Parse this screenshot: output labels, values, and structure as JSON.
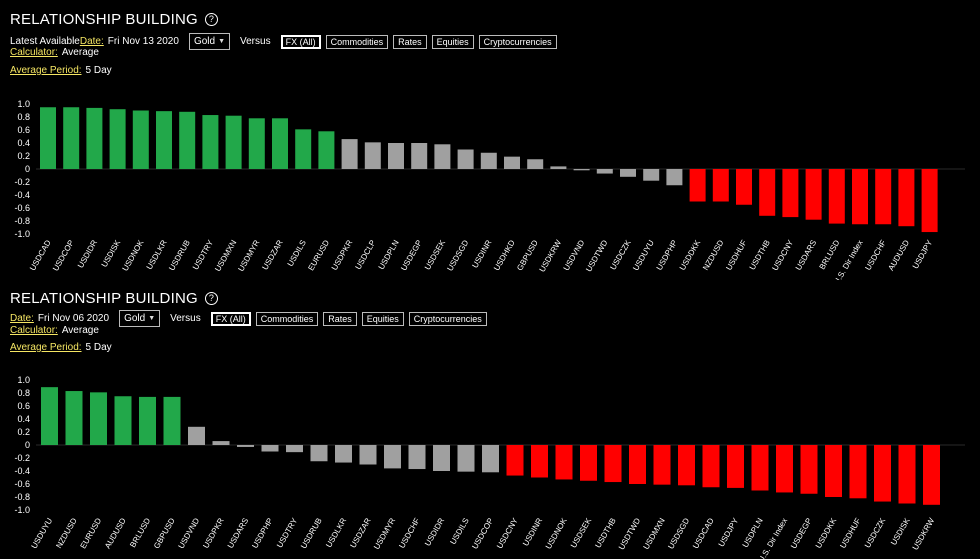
{
  "panels": [
    {
      "title": "RELATIONSHIP BUILDING",
      "help_icon": "question-circle-icon",
      "date_prefix": "Latest Available ",
      "date_label": "Date:",
      "date_value": "Fri Nov 13 2020",
      "asset_select": "Gold",
      "versus_label": "Versus",
      "tabs": [
        {
          "label": "FX (All)",
          "active": true
        },
        {
          "label": "Commodities",
          "active": false
        },
        {
          "label": "Rates",
          "active": false
        },
        {
          "label": "Equities",
          "active": false
        },
        {
          "label": "Cryptocurrencies",
          "active": false
        }
      ],
      "calculator_label": "Calculator:",
      "calculator_value": "Average",
      "period_label": "Average Period:",
      "period_value": "5 Day"
    },
    {
      "title": "RELATIONSHIP BUILDING",
      "help_icon": "question-circle-icon",
      "date_prefix": "",
      "date_label": "Date:",
      "date_value": "Fri Nov 06 2020",
      "asset_select": "Gold",
      "versus_label": "Versus",
      "tabs": [
        {
          "label": "FX (All)",
          "active": true
        },
        {
          "label": "Commodities",
          "active": false
        },
        {
          "label": "Rates",
          "active": false
        },
        {
          "label": "Equities",
          "active": false
        },
        {
          "label": "Cryptocurrencies",
          "active": false
        }
      ],
      "calculator_label": "Calculator:",
      "calculator_value": "Average",
      "period_label": "Average Period:",
      "period_value": "5 Day"
    }
  ],
  "colors": {
    "positive": "#22a84a",
    "neutral": "#a0a0a0",
    "negative": "#ff0000"
  },
  "chart_data": [
    {
      "type": "bar",
      "yticks": [
        "1.0",
        "0.8",
        "0.6",
        "0.4",
        "0.2",
        "0",
        "-0.2",
        "-0.4",
        "-0.6",
        "-0.8",
        "-1.0"
      ],
      "ylim": [
        -1,
        1
      ],
      "categories": [
        "USDCAD",
        "USDCOP",
        "USDIDR",
        "USDISK",
        "USDNOK",
        "USDLKR",
        "USDRUB",
        "USDTRY",
        "USDMXN",
        "USDMYR",
        "USDZAR",
        "USDILS",
        "EURUSD",
        "USDPKR",
        "USDCLP",
        "USDPLN",
        "USDEGP",
        "USDSEK",
        "USDSGD",
        "USDINR",
        "USDHKD",
        "GBPUSD",
        "USDKRW",
        "USDVND",
        "USDTWD",
        "USDCZK",
        "USDUYU",
        "USDPHP",
        "USDDKK",
        "NZDUSD",
        "USDHUF",
        "USDTHB",
        "USDCNY",
        "USDARS",
        "BRLUSD",
        "U.S. Dir Index",
        "USDCHF",
        "AUDUSD",
        "USDJPY"
      ],
      "values": [
        0.95,
        0.95,
        0.94,
        0.92,
        0.9,
        0.89,
        0.88,
        0.83,
        0.82,
        0.78,
        0.78,
        0.61,
        0.58,
        0.46,
        0.41,
        0.4,
        0.4,
        0.38,
        0.3,
        0.25,
        0.19,
        0.15,
        0.04,
        -0.02,
        -0.07,
        -0.12,
        -0.18,
        -0.25,
        -0.5,
        -0.5,
        -0.55,
        -0.72,
        -0.74,
        -0.78,
        -0.84,
        -0.85,
        -0.85,
        -0.88,
        -0.97
      ],
      "colors": [
        "positive",
        "positive",
        "positive",
        "positive",
        "positive",
        "positive",
        "positive",
        "positive",
        "positive",
        "positive",
        "positive",
        "positive",
        "positive",
        "neutral",
        "neutral",
        "neutral",
        "neutral",
        "neutral",
        "neutral",
        "neutral",
        "neutral",
        "neutral",
        "neutral",
        "neutral",
        "neutral",
        "neutral",
        "neutral",
        "neutral",
        "negative",
        "negative",
        "negative",
        "negative",
        "negative",
        "negative",
        "negative",
        "negative",
        "negative",
        "negative",
        "negative"
      ]
    },
    {
      "type": "bar",
      "yticks": [
        "1.0",
        "0.8",
        "0.6",
        "0.4",
        "0.2",
        "0",
        "-0.2",
        "-0.4",
        "-0.6",
        "-0.8",
        "-1.0"
      ],
      "ylim": [
        -1,
        1
      ],
      "categories": [
        "USDUYU",
        "NZDUSD",
        "EURUSD",
        "AUDUSD",
        "BRLUSD",
        "GBPUSD",
        "USDVND",
        "USDPKR",
        "USDARS",
        "USDPHP",
        "USDTRY",
        "USDRUB",
        "USDLKR",
        "USDZAR",
        "USDMYR",
        "USDCHF",
        "USDIDR",
        "USDILS",
        "USDCOP",
        "USDCNY",
        "USDINR",
        "USDNOK",
        "USDSEK",
        "USDTHB",
        "USDTWD",
        "USDMXN",
        "USDSGD",
        "USDCAD",
        "USDJPY",
        "USDPLN",
        "U.S. Dir Index",
        "USDEGP",
        "USDDKK",
        "USDHUF",
        "USDCZK",
        "USDISK",
        "USDKRW"
      ],
      "values": [
        0.89,
        0.83,
        0.81,
        0.75,
        0.74,
        0.74,
        0.28,
        0.06,
        -0.03,
        -0.1,
        -0.11,
        -0.25,
        -0.27,
        -0.3,
        -0.36,
        -0.37,
        -0.4,
        -0.41,
        -0.42,
        -0.47,
        -0.5,
        -0.53,
        -0.55,
        -0.57,
        -0.6,
        -0.61,
        -0.62,
        -0.65,
        -0.66,
        -0.7,
        -0.73,
        -0.75,
        -0.8,
        -0.82,
        -0.87,
        -0.9,
        -0.92
      ],
      "colors": [
        "positive",
        "positive",
        "positive",
        "positive",
        "positive",
        "positive",
        "neutral",
        "neutral",
        "neutral",
        "neutral",
        "neutral",
        "neutral",
        "neutral",
        "neutral",
        "neutral",
        "neutral",
        "neutral",
        "neutral",
        "neutral",
        "negative",
        "negative",
        "negative",
        "negative",
        "negative",
        "negative",
        "negative",
        "negative",
        "negative",
        "negative",
        "negative",
        "negative",
        "negative",
        "negative",
        "negative",
        "negative",
        "negative",
        "negative"
      ]
    }
  ]
}
